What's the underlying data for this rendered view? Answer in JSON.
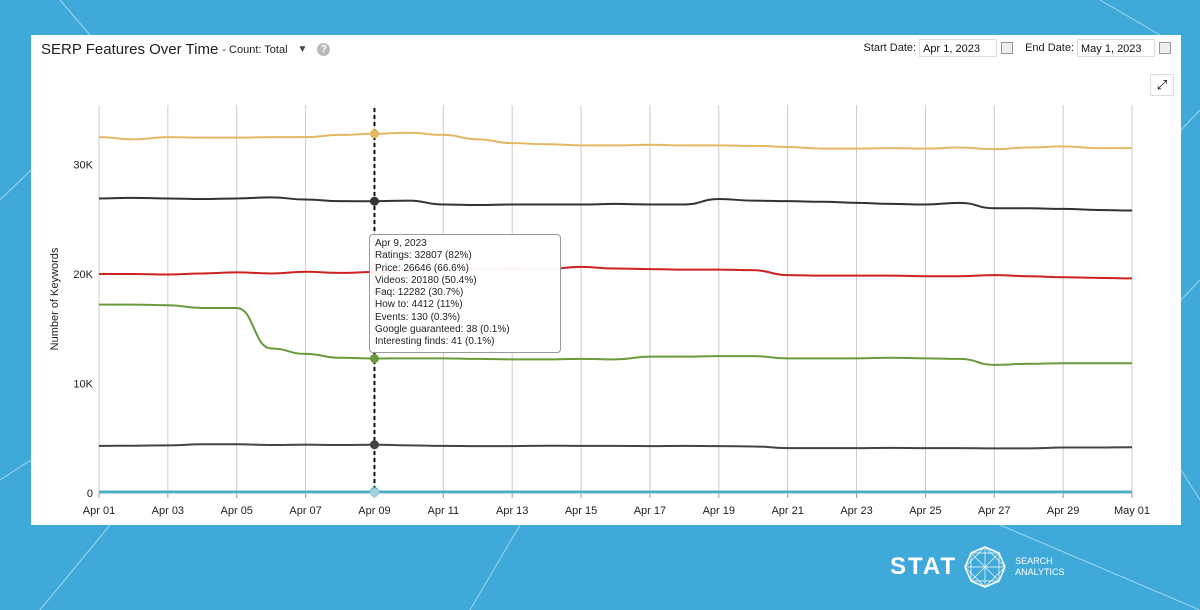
{
  "header": {
    "title": "SERP Features Over Time",
    "count_label": "- Count: Total",
    "start_label": "Start Date:",
    "start_value": "Apr 1, 2023",
    "end_label": "End Date:",
    "end_value": "May 1, 2023"
  },
  "tooltip": {
    "date": "Apr 9, 2023",
    "lines": [
      "Ratings: 32807 (82%)",
      "Price: 26646 (66.6%)",
      "Videos: 20180 (50.4%)",
      "Faq: 12282 (30.7%)",
      "How to: 4412 (11%)",
      "Events: 130 (0.3%)",
      "Google guaranteed: 38 (0.1%)",
      "Interesting finds: 41 (0.1%)"
    ]
  },
  "logo": {
    "brand": "STAT",
    "sub1": "SEARCH",
    "sub2": "ANALYTICS"
  },
  "chart_data": {
    "type": "line",
    "title": "SERP Features Over Time",
    "xlabel": "",
    "ylabel": "Number of Keywords",
    "ylim": [
      0,
      35000
    ],
    "yticks": [
      0,
      10000,
      20000,
      30000
    ],
    "ytick_labels": [
      "0",
      "10K",
      "20K",
      "30K"
    ],
    "x": [
      "Apr 01",
      "Apr 02",
      "Apr 03",
      "Apr 04",
      "Apr 05",
      "Apr 06",
      "Apr 07",
      "Apr 08",
      "Apr 09",
      "Apr 10",
      "Apr 11",
      "Apr 12",
      "Apr 13",
      "Apr 14",
      "Apr 15",
      "Apr 16",
      "Apr 17",
      "Apr 18",
      "Apr 19",
      "Apr 20",
      "Apr 21",
      "Apr 22",
      "Apr 23",
      "Apr 24",
      "Apr 25",
      "Apr 26",
      "Apr 27",
      "Apr 28",
      "Apr 29",
      "Apr 30",
      "May 01"
    ],
    "xtick_labels": [
      "Apr 01",
      "Apr 03",
      "Apr 05",
      "Apr 07",
      "Apr 09",
      "Apr 11",
      "Apr 13",
      "Apr 15",
      "Apr 17",
      "Apr 19",
      "Apr 21",
      "Apr 23",
      "Apr 25",
      "Apr 27",
      "Apr 29",
      "May 01"
    ],
    "grid": true,
    "highlight_date": "Apr 09",
    "series": [
      {
        "name": "Ratings",
        "color": "#e3b863",
        "values": [
          32500,
          32300,
          32500,
          32450,
          32450,
          32500,
          32500,
          32700,
          32807,
          32900,
          32700,
          32300,
          31950,
          31850,
          31750,
          31750,
          31800,
          31750,
          31750,
          31700,
          31600,
          31450,
          31450,
          31500,
          31450,
          31550,
          31400,
          31550,
          31650,
          31500,
          31500
        ]
      },
      {
        "name": "Price",
        "color": "#333333",
        "values": [
          26900,
          26950,
          26900,
          26850,
          26900,
          27000,
          26800,
          26650,
          26646,
          26700,
          26350,
          26300,
          26350,
          26350,
          26350,
          26400,
          26350,
          26350,
          26850,
          26700,
          26650,
          26600,
          26500,
          26400,
          26350,
          26500,
          26000,
          26000,
          25950,
          25850,
          25800
        ]
      },
      {
        "name": "Videos",
        "color": "#cc2222",
        "values": [
          20000,
          20000,
          19950,
          20050,
          20150,
          20050,
          20200,
          20100,
          20180,
          20300,
          20350,
          20450,
          20450,
          20450,
          20650,
          20500,
          20450,
          20400,
          20400,
          20350,
          19900,
          19850,
          19850,
          19850,
          19800,
          19800,
          19900,
          19800,
          19700,
          19650,
          19600
        ]
      },
      {
        "name": "Faq",
        "color": "#6a9a3d",
        "values": [
          17200,
          17200,
          17150,
          16900,
          16900,
          13200,
          12700,
          12350,
          12282,
          12300,
          12300,
          12250,
          12200,
          12200,
          12250,
          12200,
          12450,
          12450,
          12500,
          12500,
          12300,
          12300,
          12300,
          12350,
          12300,
          12250,
          11700,
          11800,
          11850,
          11850,
          11850
        ]
      },
      {
        "name": "How to",
        "color": "#444444",
        "values": [
          4300,
          4320,
          4350,
          4450,
          4450,
          4380,
          4420,
          4380,
          4412,
          4350,
          4300,
          4280,
          4280,
          4320,
          4300,
          4300,
          4280,
          4300,
          4280,
          4250,
          4100,
          4100,
          4100,
          4120,
          4100,
          4100,
          4080,
          4080,
          4150,
          4150,
          4180
        ]
      },
      {
        "name": "Events",
        "color": "#3aa9bf",
        "values": [
          130,
          130,
          130,
          130,
          130,
          130,
          130,
          130,
          130,
          130,
          130,
          130,
          130,
          130,
          130,
          130,
          130,
          130,
          130,
          130,
          130,
          130,
          130,
          130,
          130,
          130,
          130,
          130,
          130,
          130,
          130
        ]
      },
      {
        "name": "Google guaranteed",
        "color": "#88c0d8",
        "values": [
          38,
          38,
          38,
          38,
          38,
          38,
          38,
          38,
          38,
          38,
          38,
          38,
          38,
          38,
          38,
          38,
          38,
          38,
          38,
          38,
          38,
          38,
          38,
          38,
          38,
          38,
          38,
          38,
          38,
          38,
          38
        ]
      },
      {
        "name": "Interesting finds",
        "color": "#9fd0e0",
        "values": [
          41,
          41,
          41,
          41,
          41,
          41,
          41,
          41,
          41,
          41,
          41,
          41,
          41,
          41,
          41,
          41,
          41,
          41,
          41,
          41,
          41,
          41,
          41,
          41,
          41,
          41,
          41,
          41,
          41,
          41,
          41
        ]
      }
    ]
  }
}
